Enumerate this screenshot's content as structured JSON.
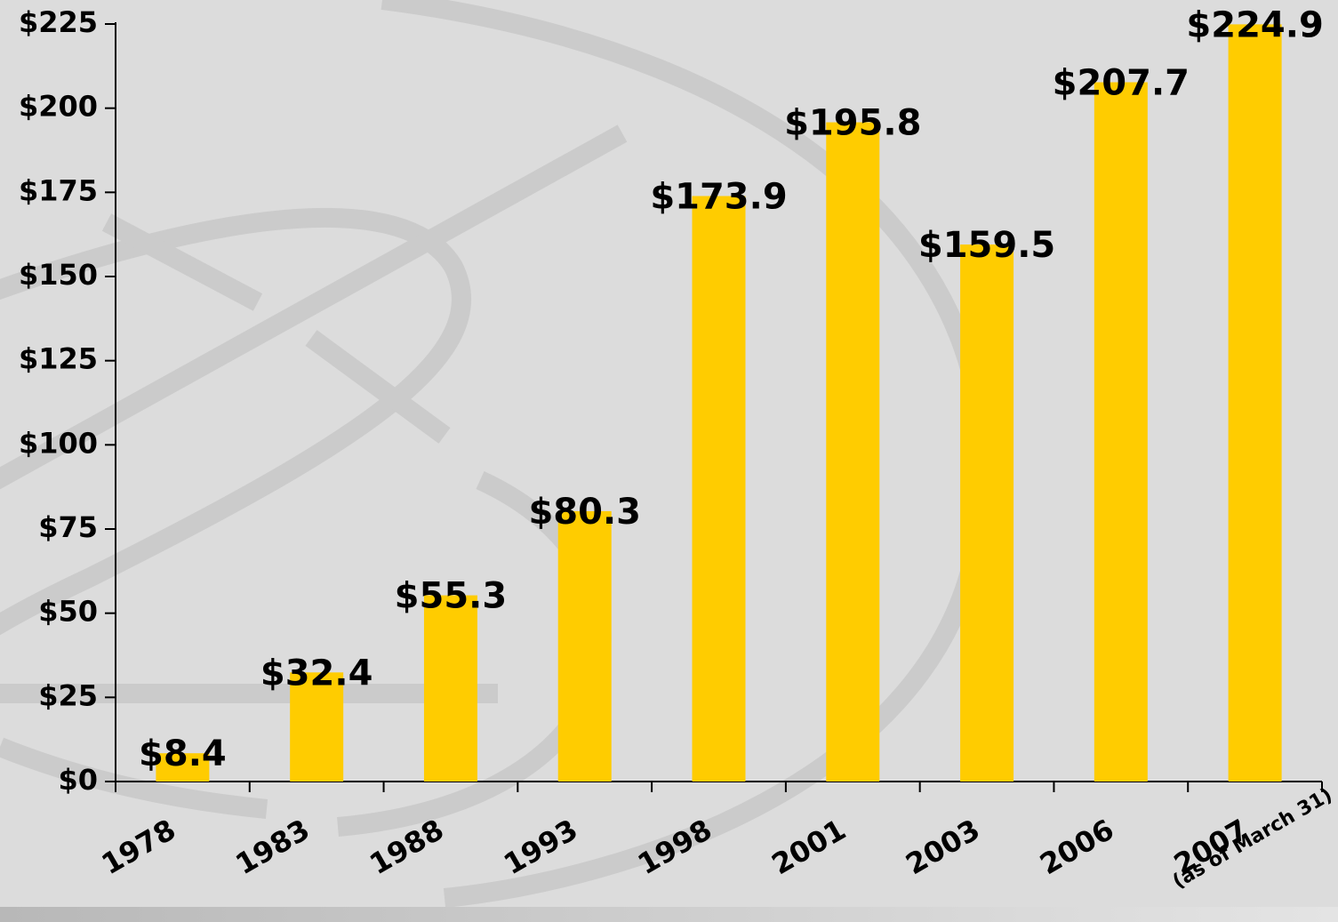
{
  "chart_data": {
    "type": "bar",
    "categories": [
      "1978",
      "1983",
      "1988",
      "1993",
      "1998",
      "2001",
      "2003",
      "2006",
      "2007"
    ],
    "category_note": "(as of March 31)",
    "values": [
      8.4,
      32.4,
      55.3,
      80.3,
      173.9,
      195.8,
      159.5,
      207.7,
      224.9
    ],
    "value_labels": [
      "$8.4",
      "$32.4",
      "$55.3",
      "$80.3",
      "$173.9",
      "$195.8",
      "$159.5",
      "$207.7",
      "$224.9"
    ],
    "color": "#ffcc00",
    "ylim": [
      0,
      225
    ],
    "yticks": [
      {
        "value": 0,
        "label": "$0"
      },
      {
        "value": 25,
        "label": "$25"
      },
      {
        "value": 50,
        "label": "$50"
      },
      {
        "value": 75,
        "label": "$75"
      },
      {
        "value": 100,
        "label": "$100"
      },
      {
        "value": 125,
        "label": "$125"
      },
      {
        "value": 150,
        "label": "$150"
      },
      {
        "value": 175,
        "label": "$175"
      },
      {
        "value": 200,
        "label": "$200"
      },
      {
        "value": 225,
        "label": "$225"
      }
    ]
  }
}
